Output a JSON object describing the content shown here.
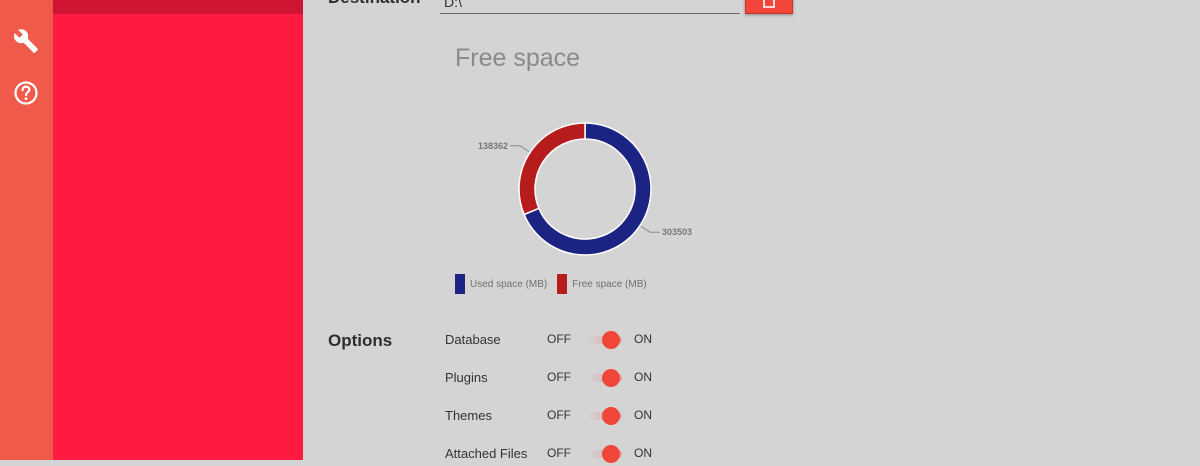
{
  "sidebar": {
    "icons": [
      {
        "name": "wrench-icon"
      },
      {
        "name": "help-icon"
      }
    ]
  },
  "destination": {
    "label": "Destination",
    "value": "D:\\"
  },
  "free_space": {
    "title": "Free space"
  },
  "chart_data": {
    "type": "pie",
    "title": "Free space",
    "categories": [
      "Used space (MB)",
      "Free space (MB)"
    ],
    "values": [
      303503,
      138362
    ],
    "colors": [
      "#1c2483",
      "#b71c1c"
    ],
    "legend": "bottom"
  },
  "options": {
    "label": "Options",
    "off_label": "OFF",
    "on_label": "ON",
    "accent": "#f0473a",
    "items": [
      {
        "label": "Database",
        "state": "on"
      },
      {
        "label": "Plugins",
        "state": "on"
      },
      {
        "label": "Themes",
        "state": "on"
      },
      {
        "label": "Attached Files",
        "state": "on"
      }
    ]
  }
}
